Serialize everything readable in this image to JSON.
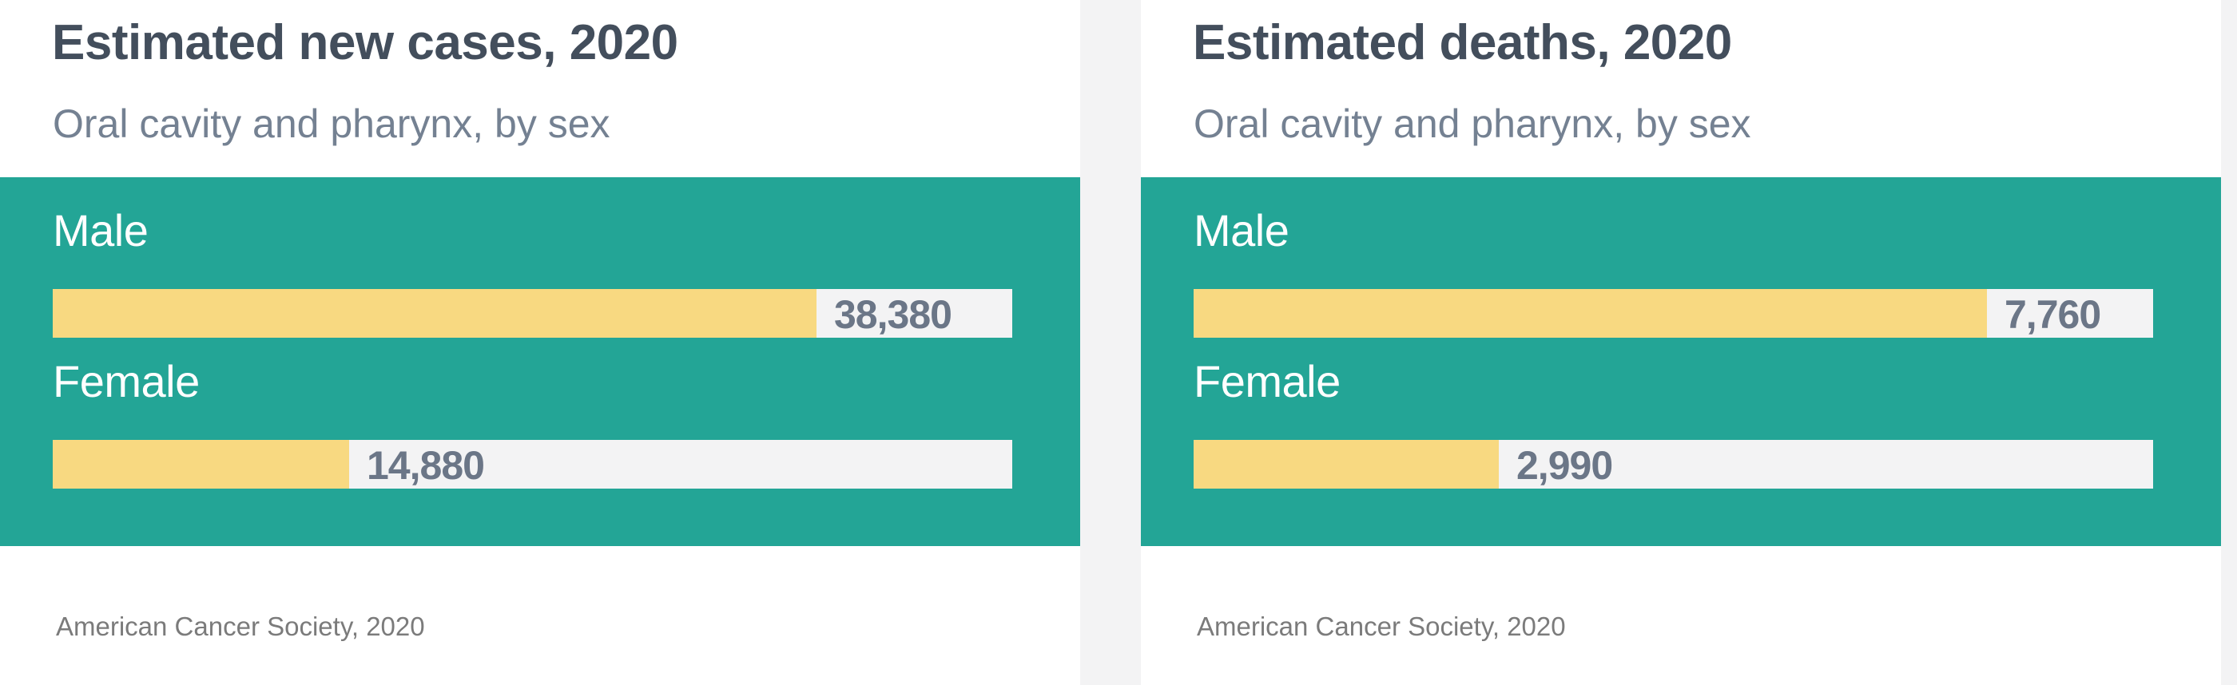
{
  "colors": {
    "band": "#23a596",
    "bar_fill": "#f8d981",
    "track": "#f3f3f4",
    "title": "#434e5c",
    "subtitle": "#748192",
    "value_text": "#6b7687"
  },
  "chart_data": [
    {
      "type": "bar",
      "orientation": "horizontal",
      "title": "Estimated new cases, 2020",
      "subtitle": "Oral cavity and pharynx, by sex",
      "categories": [
        "Male",
        "Female"
      ],
      "values": [
        38380,
        14880
      ],
      "value_labels": [
        "38,380",
        "14,880"
      ],
      "xlim": [
        0,
        48200
      ],
      "grid": false,
      "source": "American Cancer Society, 2020"
    },
    {
      "type": "bar",
      "orientation": "horizontal",
      "title": "Estimated deaths, 2020",
      "subtitle": "Oral cavity and pharynx, by sex",
      "categories": [
        "Male",
        "Female"
      ],
      "values": [
        7760,
        2990
      ],
      "value_labels": [
        "7,760",
        "2,990"
      ],
      "xlim": [
        0,
        9390
      ],
      "grid": false,
      "source": "American Cancer Society, 2020"
    }
  ]
}
